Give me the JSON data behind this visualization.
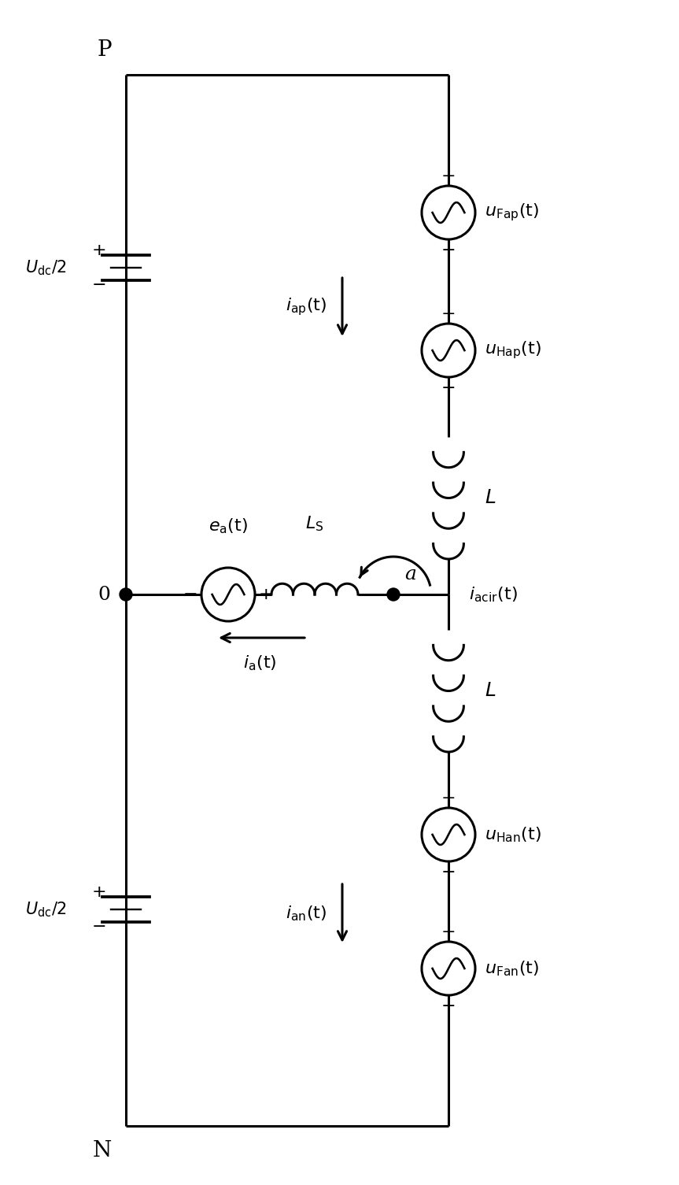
{
  "bg_color": "#ffffff",
  "lw": 2.2,
  "fig_w": 8.63,
  "fig_h": 15.05,
  "P_label": "P",
  "N_label": "N",
  "O_label": "0",
  "A_label": "a",
  "uFap": "$u_{\\mathrm{Fap}}(\\mathrm{t})$",
  "uHap": "$u_{\\mathrm{Hap}}(\\mathrm{t})$",
  "uHan": "$u_{\\mathrm{Han}}(\\mathrm{t})$",
  "uFan": "$u_{\\mathrm{Fan}}(\\mathrm{t})$",
  "ea": "$e_{\\mathrm{a}}(\\mathrm{t})$",
  "Ls": "$L_{\\mathrm{S}}$",
  "Ltop": "$L$",
  "Lbot": "$L$",
  "iap": "$i_{\\mathrm{ap}}(\\mathrm{t})$",
  "ian": "$i_{\\mathrm{an}}(\\mathrm{t})$",
  "ia": "$i_{\\mathrm{a}}(\\mathrm{t})$",
  "iacir": "$i_{\\mathrm{acir}}(\\mathrm{t})$",
  "Udc_top": "$U_{\\mathrm{dc}}/2$",
  "Udc_bot": "$U_{\\mathrm{dc}}/2$"
}
